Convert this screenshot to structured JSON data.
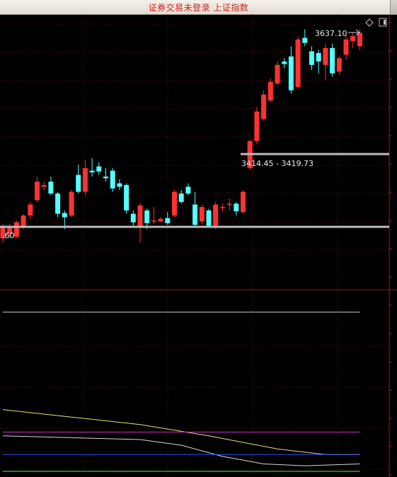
{
  "window": {
    "title": "证券交易未登录  上证指数"
  },
  "toolbar": {
    "diamond_icon": "diamond-icon",
    "panel_icon": "panel-toggle-icon"
  },
  "price_panel": {
    "high_label": "3637.10",
    "range_label": "3414.45 - 3419.73",
    "partial_label": ".60"
  },
  "colors": {
    "up": "#ff3232",
    "down": "#54ffff",
    "grid": "#7a1010",
    "axis": "#a01818",
    "crosshair": "#c0c0c0"
  },
  "chart_data": {
    "type": "candlestick",
    "ohlc": [
      [
        3385,
        3400,
        3380,
        3402
      ],
      [
        3390,
        3398,
        3385,
        3402
      ],
      [
        3387,
        3404,
        3385,
        3406
      ],
      [
        3398,
        3412,
        3396,
        3414
      ],
      [
        3412,
        3425,
        3408,
        3428
      ],
      [
        3430,
        3452,
        3428,
        3458
      ],
      [
        3446,
        3448,
        3442,
        3452
      ],
      [
        3452,
        3438,
        3436,
        3458
      ],
      [
        3438,
        3414,
        3410,
        3440
      ],
      [
        3415,
        3410,
        3396,
        3418
      ],
      [
        3412,
        3440,
        3410,
        3442
      ],
      [
        3460,
        3440,
        3438,
        3472
      ],
      [
        3440,
        3468,
        3436,
        3478
      ],
      [
        3465,
        3463,
        3458,
        3480
      ],
      [
        3470,
        3464,
        3460,
        3475
      ],
      [
        3458,
        3456,
        3452,
        3468
      ],
      [
        3465,
        3444,
        3440,
        3468
      ],
      [
        3450,
        3446,
        3442,
        3455
      ],
      [
        3448,
        3418,
        3414,
        3450
      ],
      [
        3414,
        3404,
        3400,
        3418
      ],
      [
        3398,
        3424,
        3380,
        3427
      ],
      [
        3418,
        3403,
        3396,
        3420
      ],
      [
        3405,
        3406,
        3402,
        3422
      ],
      [
        3405,
        3408,
        3404,
        3410
      ],
      [
        3409,
        3403,
        3401,
        3416
      ],
      [
        3412,
        3440,
        3410,
        3442
      ],
      [
        3438,
        3428,
        3426,
        3442
      ],
      [
        3446,
        3438,
        3436,
        3450
      ],
      [
        3425,
        3401,
        3398,
        3440
      ],
      [
        3405,
        3422,
        3402,
        3425
      ],
      [
        3418,
        3400,
        3398,
        3420
      ],
      [
        3400,
        3425,
        3396,
        3428
      ],
      [
        3422,
        3422,
        3417,
        3426
      ],
      [
        3426,
        3426,
        3418,
        3432
      ],
      [
        3426,
        3417,
        3412,
        3428
      ],
      [
        3416,
        3440,
        3414,
        3442
      ],
      [
        3468,
        3500,
        3466,
        3502
      ],
      [
        3500,
        3535,
        3496,
        3540
      ],
      [
        3526,
        3555,
        3524,
        3560
      ],
      [
        3548,
        3570,
        3546,
        3574
      ],
      [
        3568,
        3590,
        3566,
        3594
      ],
      [
        3594,
        3591,
        3586,
        3598
      ],
      [
        3600,
        3560,
        3556,
        3612
      ],
      [
        3564,
        3620,
        3562,
        3624
      ],
      [
        3622,
        3616,
        3612,
        3632
      ],
      [
        3606,
        3590,
        3584,
        3612
      ],
      [
        3604,
        3594,
        3580,
        3608
      ],
      [
        3590,
        3610,
        3572,
        3615
      ],
      [
        3610,
        3580,
        3576,
        3615
      ],
      [
        3582,
        3598,
        3578,
        3600
      ],
      [
        3602,
        3620,
        3596,
        3626
      ],
      [
        3618,
        3624,
        3610,
        3628
      ],
      [
        3612,
        3628,
        3608,
        3632
      ]
    ],
    "price_range": [
      3341,
      3650
    ],
    "indicator_lines": [
      {
        "name": "",
        "color": "#cccccc",
        "points": [
          [
            0,
            0.12
          ],
          [
            52,
            0.12
          ]
        ]
      },
      {
        "name": "",
        "color": "#e8e070",
        "points": [
          [
            0,
            0.64
          ],
          [
            10,
            0.68
          ],
          [
            20,
            0.72
          ],
          [
            30,
            0.78
          ],
          [
            40,
            0.85
          ],
          [
            47,
            0.88
          ],
          [
            52,
            0.88
          ]
        ]
      },
      {
        "name": "",
        "color": "#cc33cc",
        "points": [
          [
            0,
            0.76
          ],
          [
            52,
            0.76
          ]
        ]
      },
      {
        "name": "",
        "color": "#d8d8d8",
        "points": [
          [
            0,
            0.78
          ],
          [
            10,
            0.79
          ],
          [
            20,
            0.8
          ],
          [
            26,
            0.83
          ],
          [
            32,
            0.89
          ],
          [
            38,
            0.93
          ],
          [
            44,
            0.94
          ],
          [
            52,
            0.93
          ]
        ]
      },
      {
        "name": "",
        "color": "#3050ff",
        "points": [
          [
            0,
            0.88
          ],
          [
            52,
            0.88
          ]
        ]
      },
      {
        "name": "",
        "color": "#30ff60",
        "points": [
          [
            0,
            0.97
          ],
          [
            52,
            0.97
          ]
        ]
      }
    ]
  }
}
